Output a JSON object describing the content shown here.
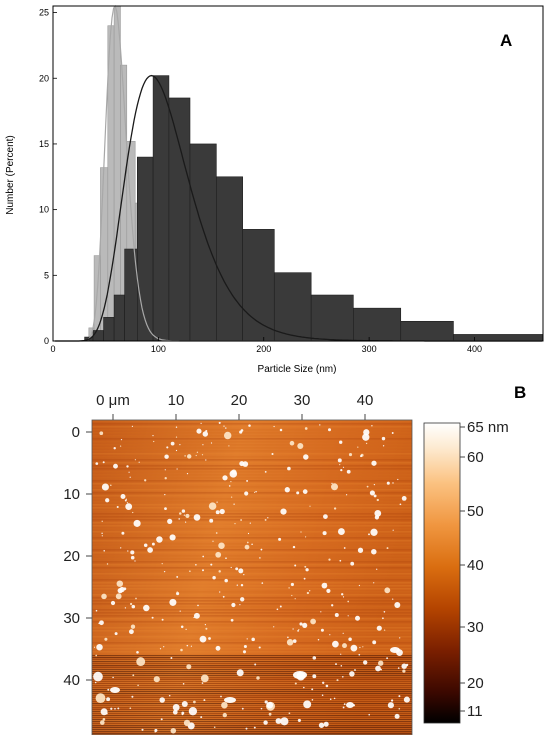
{
  "panel_a": {
    "letter": "A",
    "chart_data": {
      "type": "bar",
      "xlabel": "Particle Size (nm)",
      "ylabel": "Number (Percent)",
      "xlim": [
        0,
        465
      ],
      "ylim": [
        0,
        25.5
      ],
      "x_ticks": [
        0,
        100,
        200,
        300,
        400
      ],
      "y_ticks": [
        0,
        5,
        10,
        15,
        20,
        25
      ],
      "grid": false,
      "series": [
        {
          "color": "#b4b4b4",
          "bin_edges": [
            34,
            39,
            45,
            52,
            58,
            64,
            70,
            78,
            87,
            97,
            110,
            125,
            145,
            170,
            205,
            245,
            290,
            340
          ],
          "values": [
            1.0,
            6.5,
            13.2,
            24.0,
            25.5,
            21.0,
            15.2,
            10.5,
            7.5,
            5.5,
            4.0,
            3.0,
            2.5,
            2.0,
            1.5,
            1.2,
            0.8
          ]
        },
        {
          "color": "#3a3a3a",
          "bin_edges": [
            30,
            38,
            48,
            58,
            68,
            80,
            95,
            110,
            130,
            155,
            180,
            210,
            245,
            285,
            330,
            380,
            465
          ],
          "values": [
            0.3,
            0.8,
            1.8,
            3.5,
            7.0,
            14.0,
            20.2,
            18.5,
            15.0,
            12.5,
            8.5,
            5.2,
            3.5,
            2.5,
            1.5,
            0.5
          ]
        }
      ],
      "fits": [
        {
          "color": "#a8a8a8",
          "peak_x": 59,
          "peak_y": 25.5,
          "mu": 4.1,
          "sigma": 0.17
        },
        {
          "color": "#1a1a1a",
          "peak_x": 94,
          "peak_y": 20.2,
          "mu": 4.64,
          "sigma": 0.32
        }
      ]
    }
  },
  "panel_b": {
    "letter": "B",
    "x_ticks": [
      "0 μm",
      "10",
      "20",
      "30",
      "40"
    ],
    "y_ticks": [
      "0",
      "10",
      "20",
      "30",
      "40"
    ],
    "colorbar_ticks": [
      "65 nm",
      "60",
      "50",
      "40",
      "30",
      "20",
      "11"
    ],
    "colorbar_range": [
      11,
      65
    ],
    "colormap": [
      "#000000",
      "#3a0800",
      "#7a1f00",
      "#b44400",
      "#da6e10",
      "#f09640",
      "#fbc281",
      "#fdebd2",
      "#ffffff"
    ]
  }
}
